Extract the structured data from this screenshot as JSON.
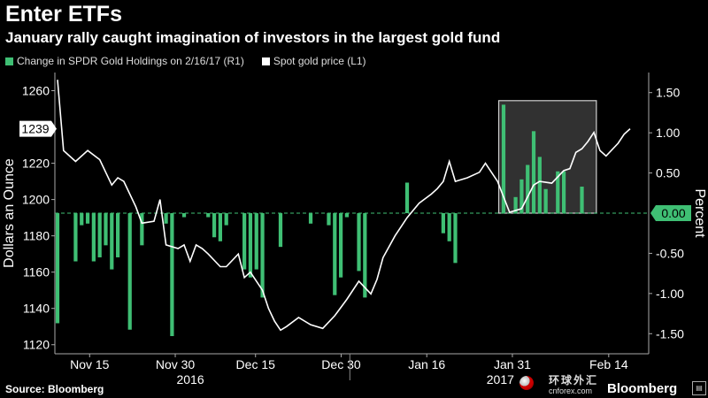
{
  "header": {
    "title": "Enter ETFs",
    "subtitle": "January rally caught imagination of investors in the largest gold fund"
  },
  "legend": [
    {
      "label": "Change in SPDR Gold Holdings on 2/16/17 (R1)",
      "color": "#3fbf74"
    },
    {
      "label": "Spot gold price (L1)",
      "color": "#ffffff"
    }
  ],
  "footer": {
    "source": "Source: Bloomberg",
    "watermark_cn": "环球外汇",
    "watermark_domain": "cnforex.com",
    "brand": "Bloomberg"
  },
  "chart_data": {
    "type": "bar+line",
    "left_axis": {
      "label": "Dollars an Ounce",
      "ylim": [
        1115,
        1270
      ],
      "ticks": [
        "1260",
        "1240",
        "1220",
        "1200",
        "1180",
        "1160",
        "1140",
        "1120"
      ]
    },
    "right_axis": {
      "label": "Percent",
      "ylim": [
        -1.75,
        1.75
      ],
      "ticks": [
        "1.50",
        "1.00",
        "0.50",
        "-0.50",
        "-1.00",
        "-1.50"
      ]
    },
    "x_tick_labels": [
      "Nov 15",
      "Nov 30",
      "Dec 15",
      "Dec 30",
      "Jan 16",
      "Jan 31",
      "Feb 14"
    ],
    "x_year_labels": [
      "2016",
      "2017"
    ],
    "callouts": {
      "left_last": "1239",
      "right_zero": "0.00"
    },
    "x_domain": [
      0,
      95
    ],
    "series": [
      {
        "name": "Change in SPDR Gold Holdings on 2/16/17",
        "axis": "right",
        "type": "bar",
        "points": [
          [
            0,
            -1.37
          ],
          [
            3,
            -0.6
          ],
          [
            4,
            -0.15
          ],
          [
            5,
            -0.13
          ],
          [
            6,
            -0.6
          ],
          [
            7,
            -0.55
          ],
          [
            8,
            -0.4
          ],
          [
            9,
            -0.7
          ],
          [
            10,
            -0.55
          ],
          [
            12,
            -1.45
          ],
          [
            14,
            -0.4
          ],
          [
            18,
            -0.13
          ],
          [
            19,
            -1.53
          ],
          [
            21,
            -0.05
          ],
          [
            25,
            -0.05
          ],
          [
            26,
            -0.3
          ],
          [
            27,
            -0.35
          ],
          [
            28,
            -0.15
          ],
          [
            31,
            -0.7
          ],
          [
            32,
            -0.8
          ],
          [
            33,
            -0.7
          ],
          [
            34,
            -1.05
          ],
          [
            37,
            -0.42
          ],
          [
            42,
            -0.13
          ],
          [
            45,
            -0.15
          ],
          [
            46,
            -1.02
          ],
          [
            47,
            -0.8
          ],
          [
            48,
            -0.05
          ],
          [
            50,
            -0.72
          ],
          [
            51,
            -1.05
          ],
          [
            58,
            0.38
          ],
          [
            64,
            -0.25
          ],
          [
            65,
            -0.35
          ],
          [
            66,
            -0.62
          ],
          [
            74,
            1.35
          ],
          [
            76,
            0.2
          ],
          [
            77,
            0.42
          ],
          [
            78,
            0.6
          ],
          [
            79,
            1.02
          ],
          [
            80,
            0.7
          ],
          [
            81,
            0.3
          ],
          [
            83,
            0.52
          ],
          [
            84,
            0.52
          ],
          [
            87,
            0.33
          ]
        ]
      },
      {
        "name": "Spot gold price",
        "axis": "left",
        "type": "line",
        "points": [
          [
            0,
            1266
          ],
          [
            1,
            1227
          ],
          [
            3,
            1221
          ],
          [
            5,
            1227
          ],
          [
            7,
            1222
          ],
          [
            9,
            1208
          ],
          [
            10,
            1212
          ],
          [
            11,
            1210
          ],
          [
            13,
            1196
          ],
          [
            14,
            1187
          ],
          [
            16,
            1188
          ],
          [
            17,
            1200
          ],
          [
            18,
            1175
          ],
          [
            20,
            1173
          ],
          [
            21,
            1175
          ],
          [
            22,
            1166
          ],
          [
            23,
            1175
          ],
          [
            24,
            1173
          ],
          [
            25,
            1170
          ],
          [
            27,
            1163
          ],
          [
            28,
            1163
          ],
          [
            30,
            1170
          ],
          [
            31,
            1157
          ],
          [
            32,
            1160
          ],
          [
            34,
            1150
          ],
          [
            35,
            1140
          ],
          [
            36,
            1133
          ],
          [
            37,
            1128
          ],
          [
            38,
            1130
          ],
          [
            40,
            1135
          ],
          [
            42,
            1131
          ],
          [
            44,
            1129
          ],
          [
            46,
            1136
          ],
          [
            48,
            1145
          ],
          [
            50,
            1155
          ],
          [
            52,
            1148
          ],
          [
            53,
            1156
          ],
          [
            54,
            1168
          ],
          [
            56,
            1180
          ],
          [
            58,
            1190
          ],
          [
            60,
            1198
          ],
          [
            62,
            1203
          ],
          [
            63,
            1206
          ],
          [
            64,
            1210
          ],
          [
            65,
            1221
          ],
          [
            66,
            1210
          ],
          [
            68,
            1212
          ],
          [
            70,
            1215
          ],
          [
            71,
            1220
          ],
          [
            73,
            1210
          ],
          [
            75,
            1193
          ],
          [
            77,
            1195
          ],
          [
            79,
            1208
          ],
          [
            80,
            1210
          ],
          [
            82,
            1209
          ],
          [
            84,
            1216
          ],
          [
            85,
            1217
          ],
          [
            86,
            1226
          ],
          [
            87,
            1228
          ],
          [
            88,
            1232
          ],
          [
            89,
            1237
          ],
          [
            90,
            1227
          ],
          [
            91,
            1224
          ],
          [
            93,
            1231
          ],
          [
            94,
            1236
          ],
          [
            95,
            1239
          ]
        ]
      }
    ]
  }
}
